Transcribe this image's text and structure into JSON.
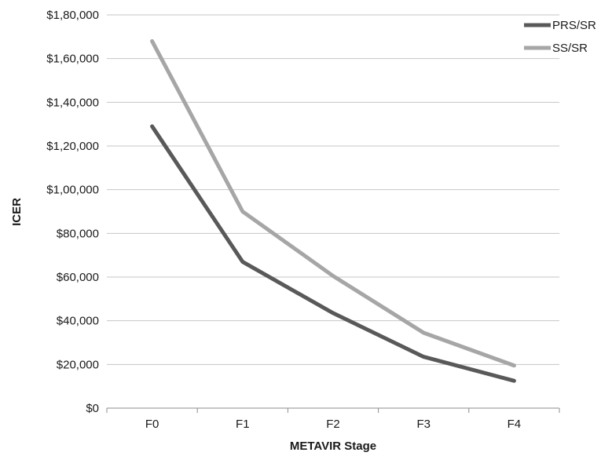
{
  "chart_data": {
    "type": "line",
    "title": "",
    "xlabel": "METAVIR Stage",
    "ylabel": "ICER",
    "categories": [
      "F0",
      "F1",
      "F2",
      "F3",
      "F4"
    ],
    "ylim": [
      0,
      180000
    ],
    "ytick_values": [
      0,
      20000,
      40000,
      60000,
      80000,
      100000,
      120000,
      140000,
      160000,
      180000
    ],
    "ytick_labels": [
      "$0",
      "$20,000",
      "$40,000",
      "$60,000",
      "$80,000",
      "$1,00,000",
      "$1,20,000",
      "$1,40,000",
      "$1,60,000",
      "$1,80,000"
    ],
    "grid": true,
    "legend_position": "top-right",
    "series": [
      {
        "name": "PRS/SR",
        "color": "#595959",
        "values": [
          129000,
          67000,
          43500,
          23500,
          12500
        ]
      },
      {
        "name": "SS/SR",
        "color": "#a6a6a6",
        "values": [
          168000,
          90000,
          60500,
          34500,
          19500
        ]
      }
    ]
  }
}
